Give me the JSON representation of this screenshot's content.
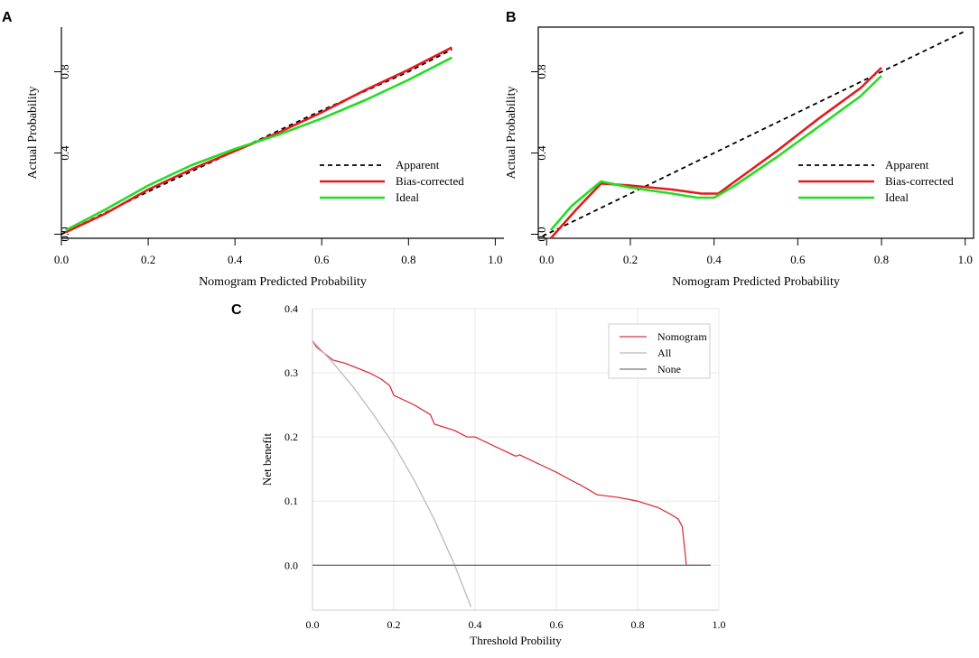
{
  "chart_data": [
    {
      "panel": "A",
      "type": "line",
      "xlabel": "Nomogram Predicted Probability",
      "ylabel": "Actual Probability",
      "xlim": [
        0,
        1.02
      ],
      "ylim": [
        -0.02,
        1.02
      ],
      "xticks": [
        0.0,
        0.2,
        0.4,
        0.6,
        0.8,
        1.0
      ],
      "xtick_labels": [
        "0.0",
        "0.2",
        "0.4",
        "0.6",
        "0.8",
        "1.0"
      ],
      "yticks": [
        0.0,
        0.4,
        0.8
      ],
      "ytick_labels": [
        "0.0",
        "0.4",
        "0.8"
      ],
      "legend": [
        "Apparent",
        "Bias-corrected",
        "Ideal"
      ],
      "series": [
        {
          "name": "Apparent",
          "color": "#000000",
          "style": "dashed",
          "x": [
            0,
            0.2,
            0.4,
            0.6,
            0.8,
            0.9
          ],
          "y": [
            0.0,
            0.21,
            0.41,
            0.61,
            0.8,
            0.91
          ]
        },
        {
          "name": "Bias-corrected",
          "color": "#e31a1c",
          "style": "solid",
          "x": [
            0.01,
            0.1,
            0.2,
            0.3,
            0.4,
            0.5,
            0.6,
            0.7,
            0.8,
            0.9
          ],
          "y": [
            0.01,
            0.1,
            0.22,
            0.32,
            0.41,
            0.5,
            0.6,
            0.71,
            0.81,
            0.92
          ]
        },
        {
          "name": "Ideal",
          "color": "#22dd22",
          "style": "solid",
          "x": [
            0.01,
            0.1,
            0.2,
            0.3,
            0.4,
            0.5,
            0.6,
            0.7,
            0.8,
            0.9
          ],
          "y": [
            0.02,
            0.12,
            0.24,
            0.34,
            0.42,
            0.49,
            0.57,
            0.66,
            0.76,
            0.87
          ]
        }
      ]
    },
    {
      "panel": "B",
      "type": "line",
      "xlabel": "Nomogram Predicted Probability",
      "ylabel": "Actual Probability",
      "xlim": [
        -0.02,
        1.02
      ],
      "ylim": [
        -0.02,
        1.02
      ],
      "xticks": [
        0.0,
        0.2,
        0.4,
        0.6,
        0.8,
        1.0
      ],
      "xtick_labels": [
        "0.0",
        "0.2",
        "0.4",
        "0.6",
        "0.8",
        "1.0"
      ],
      "yticks": [
        0.0,
        0.4,
        0.8
      ],
      "ytick_labels": [
        "0.0",
        "0.4",
        "0.8"
      ],
      "legend": [
        "Apparent",
        "Bias-corrected",
        "Ideal"
      ],
      "series": [
        {
          "name": "Apparent",
          "color": "#000000",
          "style": "dashed",
          "x": [
            -0.01,
            1.0
          ],
          "y": [
            -0.01,
            1.0
          ]
        },
        {
          "name": "Bias-corrected",
          "color": "#e31a1c",
          "style": "solid",
          "x": [
            0.01,
            0.07,
            0.13,
            0.2,
            0.3,
            0.37,
            0.41,
            0.45,
            0.55,
            0.65,
            0.75,
            0.8
          ],
          "y": [
            -0.02,
            0.12,
            0.25,
            0.24,
            0.22,
            0.2,
            0.2,
            0.26,
            0.41,
            0.57,
            0.72,
            0.82
          ]
        },
        {
          "name": "Ideal",
          "color": "#22dd22",
          "style": "solid",
          "x": [
            0.01,
            0.06,
            0.13,
            0.2,
            0.3,
            0.36,
            0.4,
            0.45,
            0.55,
            0.65,
            0.75,
            0.8
          ],
          "y": [
            0.02,
            0.14,
            0.26,
            0.23,
            0.2,
            0.18,
            0.18,
            0.24,
            0.38,
            0.53,
            0.68,
            0.78
          ]
        }
      ]
    },
    {
      "panel": "C",
      "type": "line",
      "xlabel": "Threshold Probility",
      "ylabel": "Net benefit",
      "xlim": [
        0,
        1.0
      ],
      "ylim": [
        -0.07,
        0.4
      ],
      "xticks": [
        0.0,
        0.2,
        0.4,
        0.6,
        0.8,
        1.0
      ],
      "xtick_labels": [
        "0.0",
        "0.2",
        "0.4",
        "0.6",
        "0.8",
        "1.0"
      ],
      "yticks": [
        0.0,
        0.1,
        0.2,
        0.3,
        0.4
      ],
      "ytick_labels": [
        "0.0",
        "0.1",
        "0.2",
        "0.3",
        "0.4"
      ],
      "grid": true,
      "legend": [
        "Nomogram",
        "All",
        "None"
      ],
      "series": [
        {
          "name": "Nomogram",
          "color": "#d9333f",
          "style": "solid",
          "x": [
            0.0,
            0.01,
            0.03,
            0.05,
            0.08,
            0.1,
            0.14,
            0.17,
            0.19,
            0.2,
            0.25,
            0.29,
            0.3,
            0.35,
            0.38,
            0.4,
            0.45,
            0.5,
            0.51,
            0.55,
            0.6,
            0.65,
            0.66,
            0.7,
            0.75,
            0.8,
            0.85,
            0.88,
            0.9,
            0.91,
            0.92,
            0.93,
            0.98
          ],
          "y": [
            0.35,
            0.34,
            0.33,
            0.32,
            0.315,
            0.31,
            0.3,
            0.29,
            0.28,
            0.265,
            0.25,
            0.235,
            0.22,
            0.21,
            0.2,
            0.2,
            0.185,
            0.17,
            0.172,
            0.16,
            0.145,
            0.128,
            0.125,
            0.11,
            0.106,
            0.1,
            0.09,
            0.08,
            0.072,
            0.06,
            0.0,
            0.0,
            0.0
          ]
        },
        {
          "name": "All",
          "color": "#bbbbbb",
          "style": "solid",
          "x": [
            0.0,
            0.05,
            0.1,
            0.15,
            0.2,
            0.25,
            0.3,
            0.35,
            0.39
          ],
          "y": [
            0.35,
            0.316,
            0.278,
            0.235,
            0.188,
            0.133,
            0.071,
            0.0,
            -0.065
          ]
        },
        {
          "name": "None",
          "color": "#777777",
          "style": "solid",
          "x": [
            0.0,
            0.98
          ],
          "y": [
            0.0,
            0.0
          ]
        }
      ]
    }
  ]
}
